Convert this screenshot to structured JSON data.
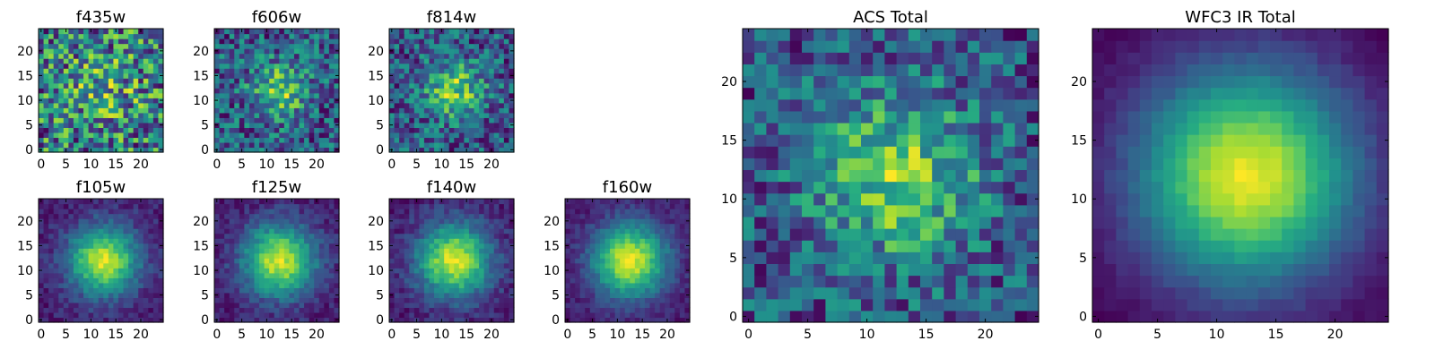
{
  "colormap": "viridis",
  "panels": [
    {
      "id": "f435w",
      "title": "f435w",
      "xticks": [
        "0",
        "5",
        "10",
        "15",
        "20"
      ],
      "yticks": [
        "0",
        "5",
        "10",
        "15",
        "20"
      ],
      "noise": 0.55,
      "signal": 0.25,
      "sigma": 5.5,
      "base": 0.55
    },
    {
      "id": "f606w",
      "title": "f606w",
      "xticks": [
        "0",
        "5",
        "10",
        "15",
        "20"
      ],
      "yticks": [
        "0",
        "5",
        "10",
        "15",
        "20"
      ],
      "noise": 0.35,
      "signal": 0.55,
      "sigma": 4.0,
      "base": 0.2
    },
    {
      "id": "f814w",
      "title": "f814w",
      "xticks": [
        "0",
        "5",
        "10",
        "15",
        "20"
      ],
      "yticks": [
        "0",
        "5",
        "10",
        "15",
        "20"
      ],
      "noise": 0.35,
      "signal": 0.6,
      "sigma": 4.0,
      "base": 0.15
    },
    {
      "id": "f105w",
      "title": "f105w",
      "xticks": [
        "0",
        "5",
        "10",
        "15",
        "20"
      ],
      "yticks": [
        "0",
        "5",
        "10",
        "15",
        "20"
      ],
      "noise": 0.1,
      "signal": 0.85,
      "sigma": 5.0,
      "base": 0.05
    },
    {
      "id": "f125w",
      "title": "f125w",
      "xticks": [
        "0",
        "5",
        "10",
        "15",
        "20"
      ],
      "yticks": [
        "0",
        "5",
        "10",
        "15",
        "20"
      ],
      "noise": 0.1,
      "signal": 0.85,
      "sigma": 5.2,
      "base": 0.08
    },
    {
      "id": "f140w",
      "title": "f140w",
      "xticks": [
        "0",
        "5",
        "10",
        "15",
        "20"
      ],
      "yticks": [
        "0",
        "5",
        "10",
        "15",
        "20"
      ],
      "noise": 0.1,
      "signal": 0.85,
      "sigma": 5.2,
      "base": 0.05
    },
    {
      "id": "f160w",
      "title": "f160w",
      "xticks": [
        "0",
        "5",
        "10",
        "15",
        "20"
      ],
      "yticks": [
        "0",
        "5",
        "10",
        "15",
        "20"
      ],
      "noise": 0.08,
      "signal": 0.9,
      "sigma": 5.3,
      "base": 0.03
    },
    {
      "id": "acs_total",
      "title": "ACS Total",
      "xticks": [
        "0",
        "5",
        "10",
        "15",
        "20"
      ],
      "yticks": [
        "0",
        "5",
        "10",
        "15",
        "20"
      ],
      "noise": 0.3,
      "signal": 0.6,
      "sigma": 5.0,
      "base": 0.25
    },
    {
      "id": "wfc3_total",
      "title": "WFC3 IR Total",
      "xticks": [
        "0",
        "5",
        "10",
        "15",
        "20"
      ],
      "yticks": [
        "0",
        "5",
        "10",
        "15",
        "20"
      ],
      "noise": 0.03,
      "signal": 0.95,
      "sigma": 6.5,
      "base": 0.0
    }
  ],
  "chart_data": {
    "type": "heatmap",
    "grid_size": [
      25,
      25
    ],
    "source_center": [
      12.5,
      12
    ],
    "xlim": [
      0,
      24
    ],
    "ylim": [
      0,
      24
    ],
    "panels": [
      "f435w",
      "f606w",
      "f814w",
      "f105w",
      "f125w",
      "f140w",
      "f160w",
      "ACS Total",
      "WFC3 IR Total"
    ]
  }
}
